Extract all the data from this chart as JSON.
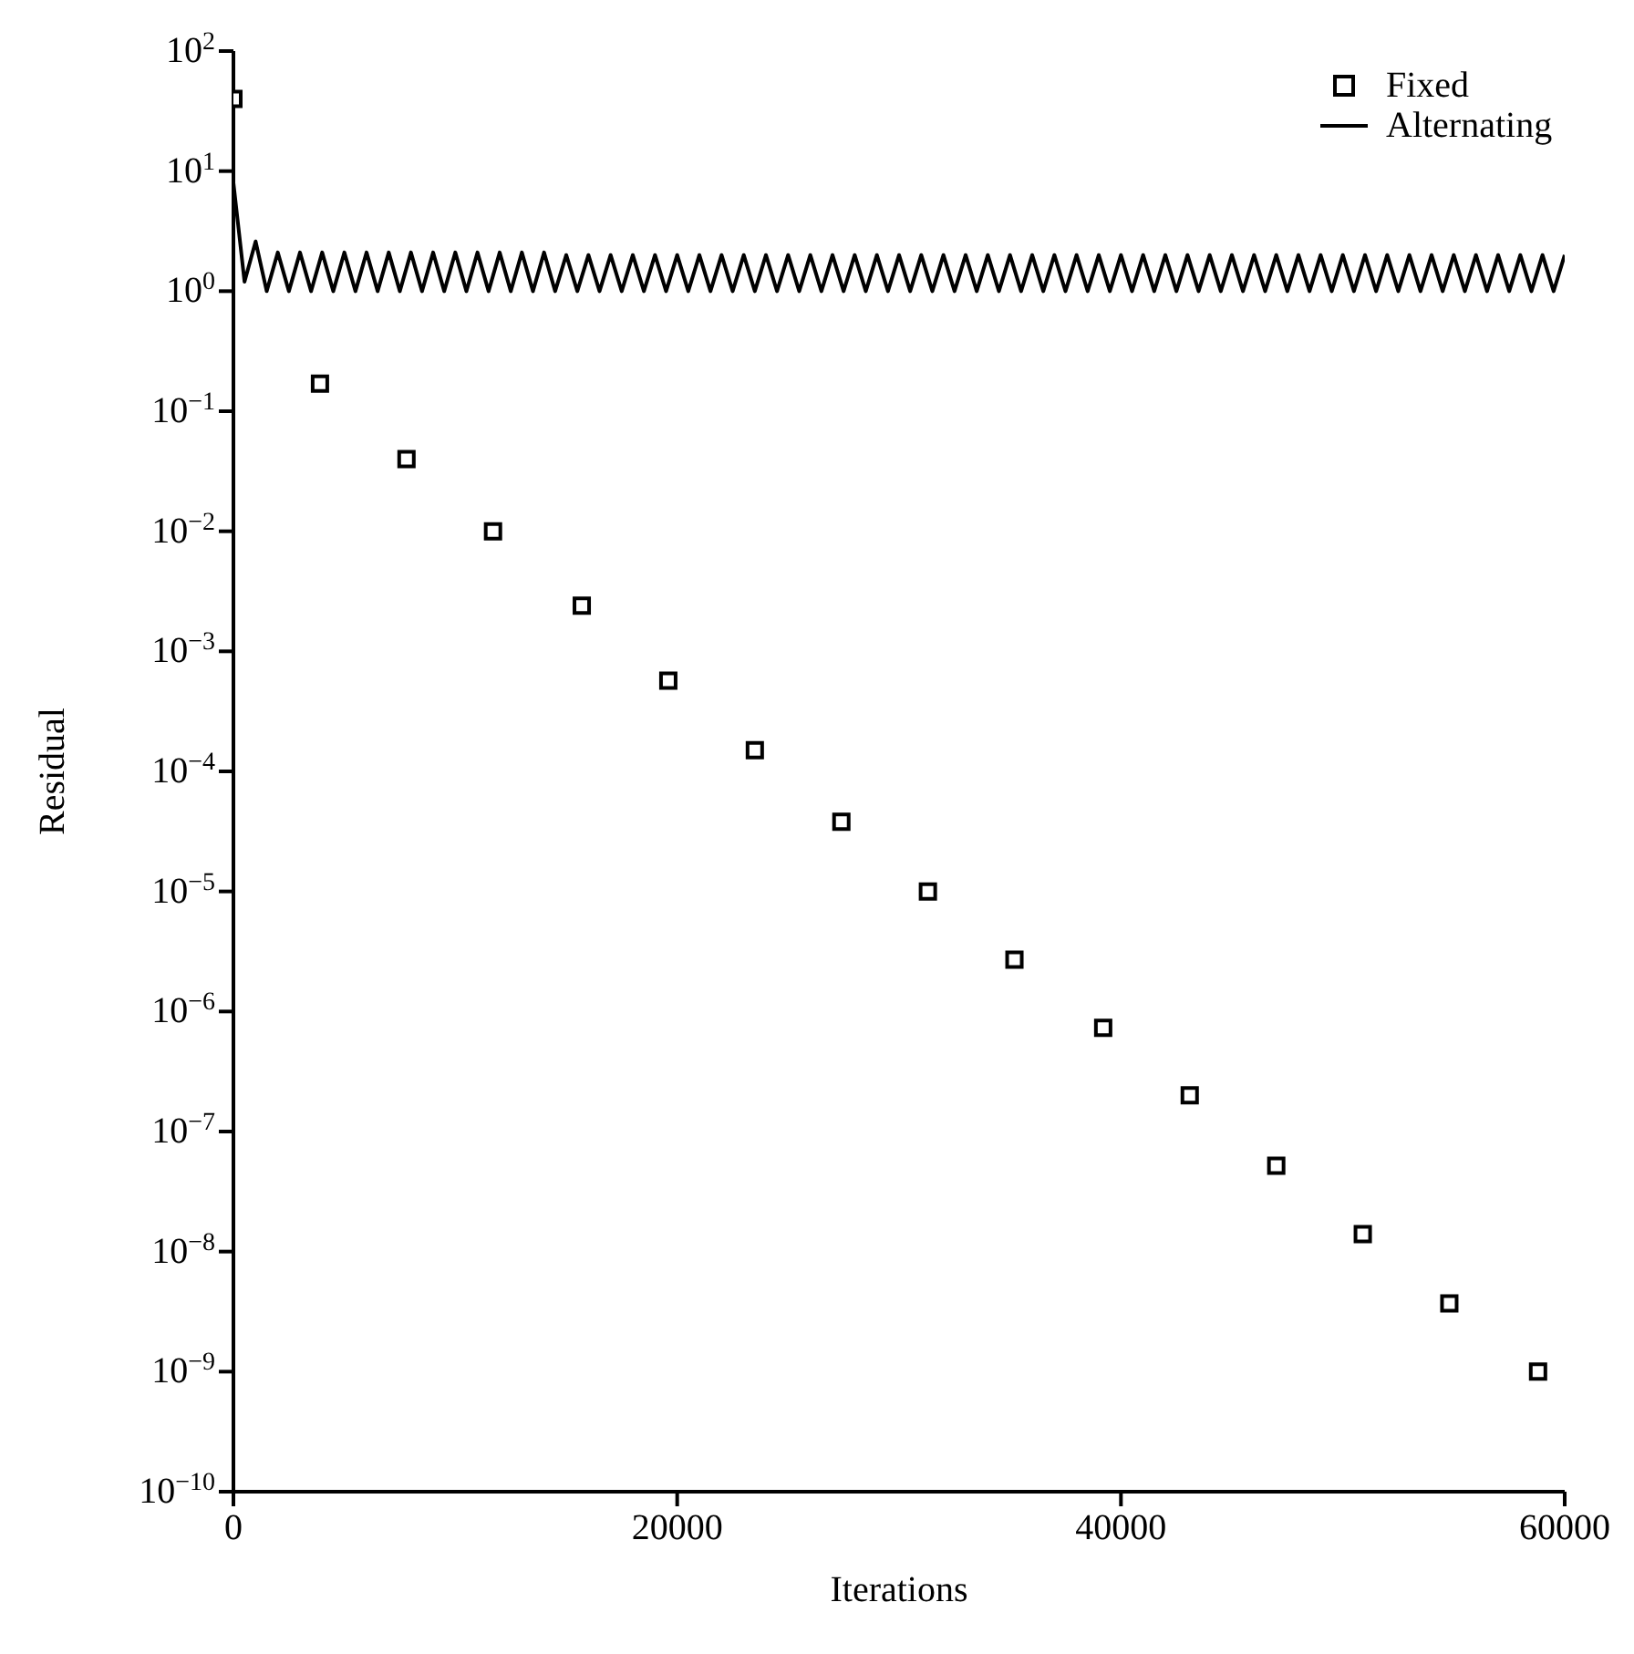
{
  "chart_data": {
    "type": "scatter",
    "xlabel": "Iterations",
    "ylabel": "Residual",
    "log": "y",
    "xlim": [
      0,
      60000
    ],
    "xticks": [
      0,
      20000,
      40000,
      60000
    ],
    "ylim": [
      1e-10,
      100
    ],
    "yticks": [
      {
        "value": 1e-10,
        "label": "10$^{−10}$"
      },
      {
        "value": 1e-09,
        "label": "10$^{−9}$"
      },
      {
        "value": 1e-08,
        "label": "10$^{−8}$"
      },
      {
        "value": 1e-07,
        "label": "10$^{−7}$"
      },
      {
        "value": 1e-06,
        "label": "10$^{−6}$"
      },
      {
        "value": 1e-05,
        "label": "10$^{−5}$"
      },
      {
        "value": 0.0001,
        "label": "10$^{−4}$"
      },
      {
        "value": 0.001,
        "label": "10$^{−3}$"
      },
      {
        "value": 0.01,
        "label": "10$^{−2}$"
      },
      {
        "value": 0.1,
        "label": "10$^{−1}$"
      },
      {
        "value": 1,
        "label": "10$^{0}$"
      },
      {
        "value": 10,
        "label": "10$^{1}$"
      },
      {
        "value": 100,
        "label": "10$^{2}$"
      }
    ],
    "grid": false,
    "legend": "top right",
    "series": [
      {
        "name": "Fixed",
        "color": "#000000",
        "marker": "square",
        "x": [
          0,
          3900,
          7800,
          11700,
          15700,
          19600,
          23500,
          27400,
          31300,
          35200,
          39200,
          43100,
          47000,
          50900,
          54800,
          58800
        ],
        "values": [
          40,
          0.17,
          0.04,
          0.01,
          0.0024,
          0.00057,
          0.00015,
          3.8e-05,
          1e-05,
          2.7e-06,
          7.3e-07,
          2e-07,
          5.2e-08,
          1.4e-08,
          3.7e-09,
          1e-09
        ]
      },
      {
        "name": "Alternating",
        "type": "line",
        "color": "#000000",
        "marker": "none",
        "line_style": "solid",
        "x": [
          0,
          500,
          1000,
          1500,
          2000,
          2500,
          3000,
          3500,
          4000,
          4500,
          5000,
          5500,
          6000,
          6500,
          7000,
          7500,
          8000,
          8500,
          9000,
          9500,
          10000,
          10500,
          11000,
          11500,
          12000,
          12500,
          13000,
          13500,
          14000,
          14500,
          15000,
          15500,
          16000,
          16500,
          17000,
          17500,
          18000,
          18500,
          19000,
          19500,
          20000,
          20500,
          21000,
          21500,
          22000,
          22500,
          23000,
          23500,
          24000,
          24500,
          25000,
          25500,
          26000,
          26500,
          27000,
          27500,
          28000,
          28500,
          29000,
          29500,
          30000,
          30500,
          31000,
          31500,
          32000,
          32500,
          33000,
          33500,
          34000,
          34500,
          35000,
          35500,
          36000,
          36500,
          37000,
          37500,
          38000,
          38500,
          39000,
          39500,
          40000,
          40500,
          41000,
          41500,
          42000,
          42500,
          43000,
          43500,
          44000,
          44500,
          45000,
          45500,
          46000,
          46500,
          47000,
          47500,
          48000,
          48500,
          49000,
          49500,
          50000,
          50500,
          51000,
          51500,
          52000,
          52500,
          53000,
          53500,
          54000,
          54500,
          55000,
          55500,
          56000,
          56500,
          57000,
          57500,
          58000,
          58500,
          59000,
          59500,
          60000
        ],
        "values": [
          8,
          1.2,
          2.6,
          1.0,
          2.1,
          1.0,
          2.1,
          1.0,
          2.1,
          1.0,
          2.1,
          1.0,
          2.1,
          1.0,
          2.1,
          1.0,
          2.1,
          1.0,
          2.1,
          1.0,
          2.1,
          1.0,
          2.1,
          1.0,
          2.1,
          1.0,
          2.1,
          1.0,
          2.1,
          1.0,
          2.0,
          1.0,
          2.0,
          1.0,
          2.0,
          1.0,
          2.0,
          1.0,
          2.0,
          1.0,
          2.0,
          1.0,
          2.0,
          1.0,
          2.0,
          1.0,
          2.0,
          1.0,
          2.0,
          1.0,
          2.0,
          1.0,
          2.0,
          1.0,
          2.0,
          1.0,
          2.0,
          1.0,
          2.0,
          1.0,
          2.0,
          1.0,
          2.0,
          1.0,
          2.0,
          1.0,
          2.0,
          1.0,
          2.0,
          1.0,
          2.0,
          1.0,
          2.0,
          1.0,
          2.0,
          1.0,
          2.0,
          1.0,
          2.0,
          1.0,
          2.0,
          1.0,
          2.0,
          1.0,
          2.0,
          1.0,
          2.0,
          1.0,
          2.0,
          1.0,
          2.0,
          1.0,
          2.0,
          1.0,
          2.0,
          1.0,
          2.0,
          1.0,
          2.0,
          1.0,
          2.0,
          1.0,
          2.0,
          1.0,
          2.0,
          1.0,
          2.0,
          1.0,
          2.0,
          1.0,
          2.0,
          1.0,
          2.0,
          1.0,
          2.0,
          1.0,
          2.0,
          1.0,
          2.0,
          1.0,
          2.0
        ]
      }
    ]
  }
}
